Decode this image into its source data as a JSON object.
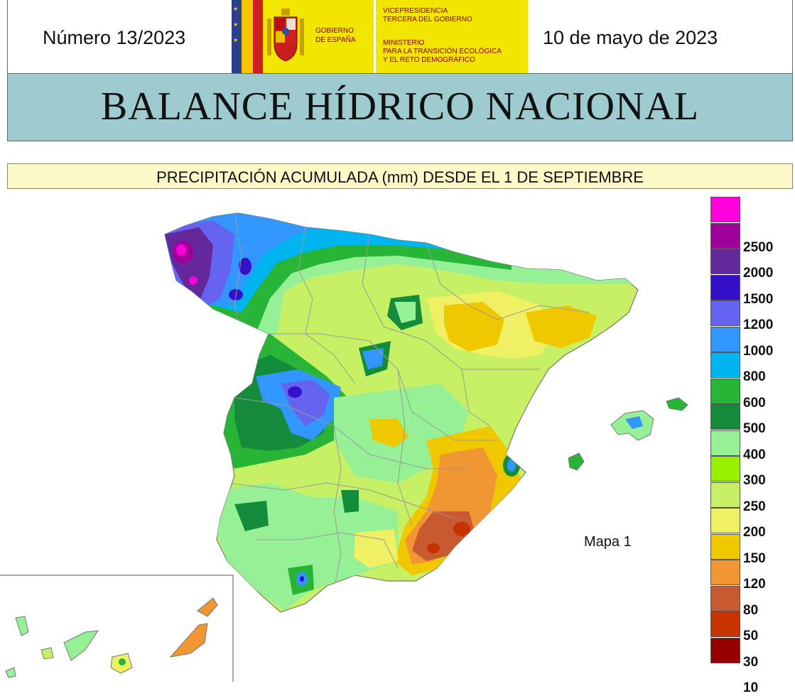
{
  "header": {
    "issue_number": "Número 13/2023",
    "date": "10 de mayo de 2023",
    "logo": {
      "gobierno": [
        "GOBIERNO",
        "DE ESPAÑA"
      ],
      "vicepresidencia": "VICEPRESIDENCIA\nTERCERA DEL GOBIERNO",
      "ministerio": "MINISTERIO\nPARA LA TRANSICIÓN ECOLÓGICA\nY EL RETO DEMOGRÁFICO"
    }
  },
  "title": "BALANCE HÍDRICO NACIONAL",
  "subtitle": "PRECIPITACIÓN ACUMULADA (mm) DESDE EL 1 DE SEPTIEMBRE",
  "map": {
    "label": "Mapa 1"
  },
  "legend": {
    "items": [
      {
        "label": "",
        "color": "#ff00dd"
      },
      {
        "label": "2500",
        "color": "#a0009a"
      },
      {
        "label": "2000",
        "color": "#64289a"
      },
      {
        "label": "1500",
        "color": "#3410c8"
      },
      {
        "label": "1200",
        "color": "#6464f0"
      },
      {
        "label": "1000",
        "color": "#3296ff"
      },
      {
        "label": "800",
        "color": "#00b4f0"
      },
      {
        "label": "600",
        "color": "#28b437"
      },
      {
        "label": "500",
        "color": "#148c3c"
      },
      {
        "label": "400",
        "color": "#96f096"
      },
      {
        "label": "300",
        "color": "#96f000"
      },
      {
        "label": "250",
        "color": "#c8f064"
      },
      {
        "label": "200",
        "color": "#f0f064"
      },
      {
        "label": "150",
        "color": "#f0c800"
      },
      {
        "label": "120",
        "color": "#f09632"
      },
      {
        "label": "80",
        "color": "#c85a32"
      },
      {
        "label": "50",
        "color": "#c83200"
      },
      {
        "label": "30",
        "color": "#960000"
      },
      {
        "label": "10",
        "color": ""
      }
    ]
  }
}
